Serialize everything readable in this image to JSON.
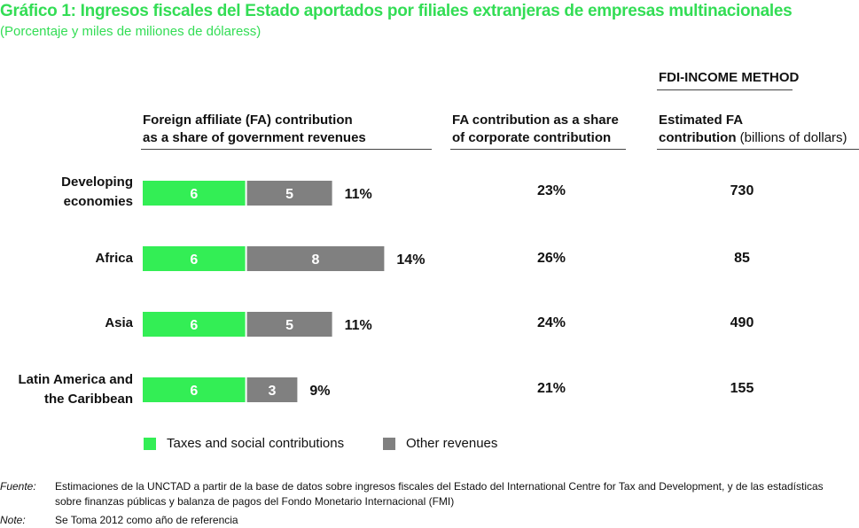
{
  "title": "Gráfico 1: Ingresos fiscales del Estado aportados por filiales extranjeras de empresas multinacionales",
  "subtitle": "(Porcentaje y miles de miliones de dólaress)",
  "method_header": "FDI-INCOME METHOD",
  "columns": {
    "chart": [
      "Foreign affiliate (FA) contribution",
      "as a share of government revenues"
    ],
    "share": [
      "FA contribution as a share",
      "of corporate contribution"
    ],
    "estimated": [
      "Estimated FA",
      "contribution",
      " (billions of dollars)"
    ]
  },
  "colors": {
    "green": "#33ee55",
    "gray": "#808080",
    "title_green": "#33dd55"
  },
  "chart_data": {
    "type": "bar",
    "orientation": "horizontal",
    "stacked": true,
    "categories": [
      [
        "Developing",
        "economies"
      ],
      [
        "Africa"
      ],
      [
        "Asia"
      ],
      [
        "Latin America and",
        "the Caribbean"
      ]
    ],
    "series": [
      {
        "name": "Taxes and social contributions",
        "values": [
          6,
          6,
          6,
          6
        ],
        "labels": [
          "6",
          "6",
          "6",
          "6"
        ]
      },
      {
        "name": "Other revenues",
        "values": [
          5,
          8,
          5,
          3
        ],
        "labels": [
          "5",
          "8",
          "5",
          "3"
        ]
      }
    ],
    "totals": [
      "11%",
      "14%",
      "11%",
      "9%"
    ],
    "legend": "bottom"
  },
  "table": {
    "share": [
      "23%",
      "26%",
      "24%",
      "21%"
    ],
    "estimated": [
      "730",
      "85",
      "490",
      "155"
    ]
  },
  "legend": {
    "taxes": "Taxes and social contributions",
    "other": "Other revenues"
  },
  "footnotes": {
    "source_key": "Fuente:",
    "source_text": "Estimaciones de la UNCTAD a partir de la base de datos sobre ingresos fiscales del Estado del International Centre for Tax and Development, y de las estadísticas sobre finanzas públicas y balanza de pagos del Fondo Monetario Internacional (FMI)",
    "note_key": "Note:",
    "note_text": "Se Toma 2012 como año de referencia"
  }
}
